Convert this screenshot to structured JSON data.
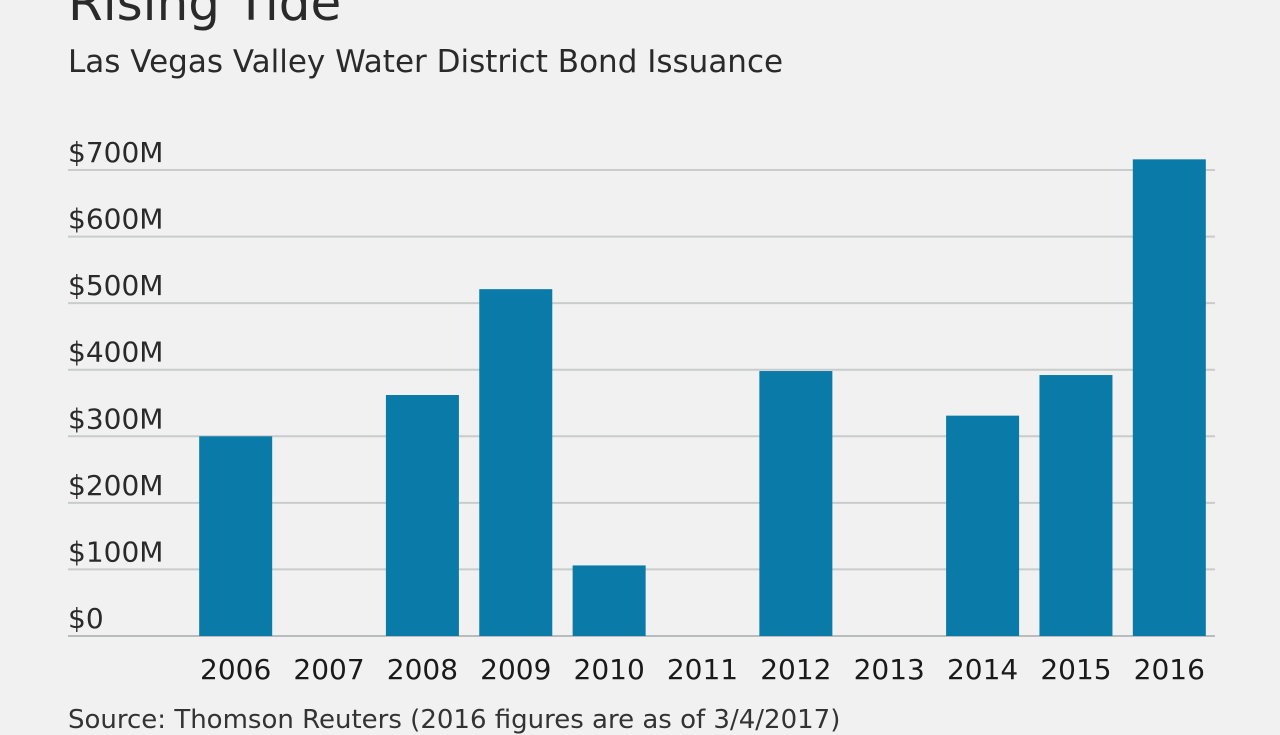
{
  "header": {
    "title": "Rising Tide",
    "subtitle": "Las Vegas Valley Water District Bond Issuance"
  },
  "footer": {
    "source": "Source: Thomson Reuters (2016 figures are as of 3/4/2017)"
  },
  "colors": {
    "bar": "#0a7aa8",
    "grid": "#c9cccc",
    "background": "#f0f1f0"
  },
  "chart_data": {
    "type": "bar",
    "title": "Rising Tide",
    "subtitle": "Las Vegas Valley Water District Bond Issuance",
    "xlabel": "",
    "ylabel": "",
    "categories": [
      "2006",
      "2007",
      "2008",
      "2009",
      "2010",
      "2011",
      "2012",
      "2013",
      "2014",
      "2015",
      "2016"
    ],
    "values": [
      300,
      0,
      362,
      521,
      106,
      0,
      398,
      0,
      331,
      392,
      716
    ],
    "units": "millions USD",
    "ylim": [
      0,
      700
    ],
    "y_ticks": [
      {
        "value": 0,
        "label": "$0"
      },
      {
        "value": 100,
        "label": "$100M"
      },
      {
        "value": 200,
        "label": "$200M"
      },
      {
        "value": 300,
        "label": "$300M"
      },
      {
        "value": 400,
        "label": "$400M"
      },
      {
        "value": 500,
        "label": "$500M"
      },
      {
        "value": 600,
        "label": "$600M"
      },
      {
        "value": 700,
        "label": "$700M"
      }
    ],
    "grid": true,
    "legend": "none"
  }
}
